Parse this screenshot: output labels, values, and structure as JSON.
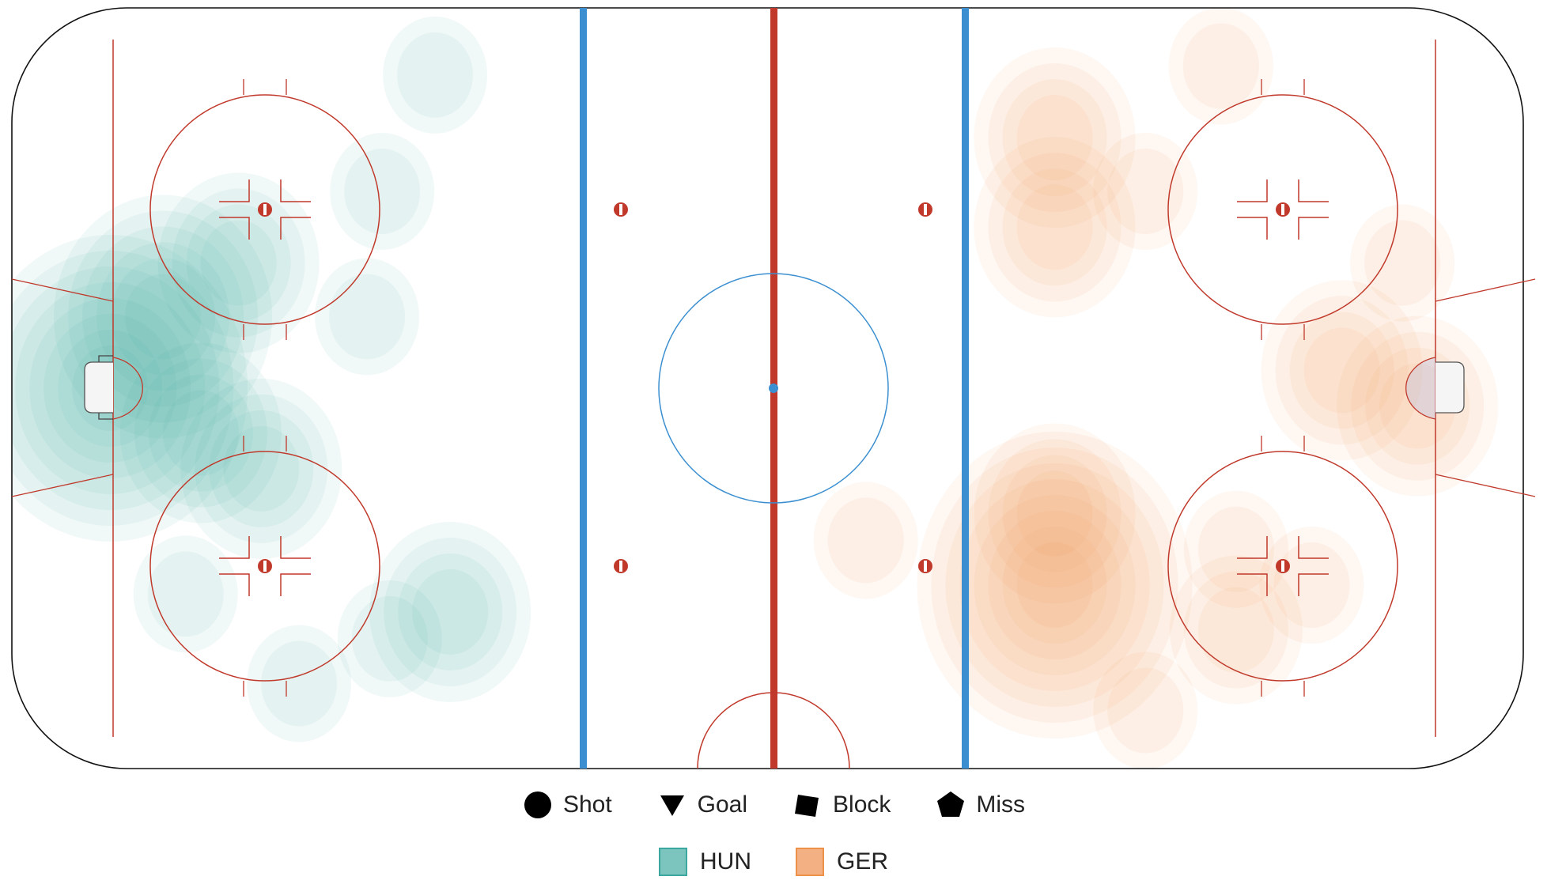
{
  "chart_data": {
    "type": "heatmap",
    "rink": {
      "x_range": [
        -100,
        100
      ],
      "y_range": [
        -42.5,
        42.5
      ]
    },
    "legend_markers": [
      {
        "label": "Shot",
        "icon": "circle-icon"
      },
      {
        "label": "Goal",
        "icon": "triangle-down-icon"
      },
      {
        "label": "Block",
        "icon": "square-icon"
      },
      {
        "label": "Miss",
        "icon": "pentagon-icon"
      }
    ],
    "series": [
      {
        "name": "HUN",
        "color": "#3aa89f",
        "swatch_color": "#7cc4be",
        "density_peaks": [
          {
            "x": -87,
            "y": 0,
            "weight": 1.0
          },
          {
            "x": -80,
            "y": 8,
            "weight": 0.7
          },
          {
            "x": -70,
            "y": 14,
            "weight": 0.5
          },
          {
            "x": -67,
            "y": -9,
            "weight": 0.5
          },
          {
            "x": -75,
            "y": -5,
            "weight": 0.55
          },
          {
            "x": -42,
            "y": -25,
            "weight": 0.45
          },
          {
            "x": -50,
            "y": -28,
            "weight": 0.28
          },
          {
            "x": -77,
            "y": -23,
            "weight": 0.28
          },
          {
            "x": -44,
            "y": 35,
            "weight": 0.16
          },
          {
            "x": -51,
            "y": 22,
            "weight": 0.12
          },
          {
            "x": -53,
            "y": 8,
            "weight": 0.1
          },
          {
            "x": -62,
            "y": -33,
            "weight": 0.14
          }
        ]
      },
      {
        "name": "GER",
        "color": "#ed9148",
        "swatch_color": "#f3b083",
        "density_peaks": [
          {
            "x": 38,
            "y": -22,
            "weight": 1.0
          },
          {
            "x": 38,
            "y": -14,
            "weight": 0.55
          },
          {
            "x": 38,
            "y": 28,
            "weight": 0.55
          },
          {
            "x": 38,
            "y": 18,
            "weight": 0.45
          },
          {
            "x": 76,
            "y": 2,
            "weight": 0.55
          },
          {
            "x": 86,
            "y": -2,
            "weight": 0.45
          },
          {
            "x": 62,
            "y": -27,
            "weight": 0.4
          },
          {
            "x": 62,
            "y": -18,
            "weight": 0.22
          },
          {
            "x": 84,
            "y": 14,
            "weight": 0.28
          },
          {
            "x": 50,
            "y": 22,
            "weight": 0.22
          },
          {
            "x": 60,
            "y": 36,
            "weight": 0.14
          },
          {
            "x": 13,
            "y": -17,
            "weight": 0.12
          },
          {
            "x": 72,
            "y": -22,
            "weight": 0.15
          },
          {
            "x": 50,
            "y": -36,
            "weight": 0.12
          }
        ]
      }
    ]
  }
}
